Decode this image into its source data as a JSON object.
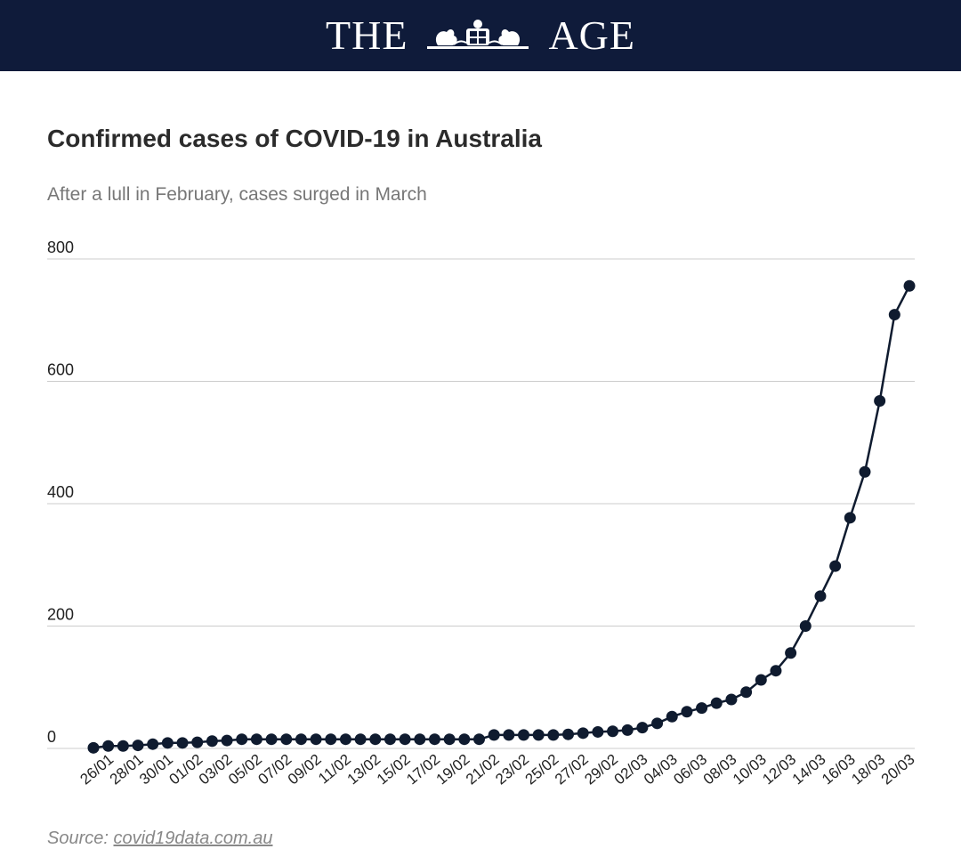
{
  "masthead": {
    "left_word": "THE",
    "right_word": "AGE"
  },
  "chart_data": {
    "type": "line",
    "title": "Confirmed cases of COVID-19 in Australia",
    "subtitle": "After a lull in February, cases surged in March",
    "xlabel": "",
    "ylabel": "",
    "ylim": [
      0,
      800
    ],
    "yticks": [
      0,
      200,
      400,
      600,
      800
    ],
    "grid": true,
    "x": [
      "25/01",
      "26/01",
      "27/01",
      "28/01",
      "29/01",
      "30/01",
      "31/01",
      "01/02",
      "02/02",
      "03/02",
      "04/02",
      "05/02",
      "06/02",
      "07/02",
      "08/02",
      "09/02",
      "10/02",
      "11/02",
      "12/02",
      "13/02",
      "14/02",
      "15/02",
      "16/02",
      "17/02",
      "18/02",
      "19/02",
      "20/02",
      "21/02",
      "22/02",
      "23/02",
      "24/02",
      "25/02",
      "26/02",
      "27/02",
      "28/02",
      "29/02",
      "01/03",
      "02/03",
      "03/03",
      "04/03",
      "05/03",
      "06/03",
      "07/03",
      "08/03",
      "09/03",
      "10/03",
      "11/03",
      "12/03",
      "13/03",
      "14/03",
      "15/03",
      "16/03",
      "17/03",
      "18/03",
      "19/03",
      "20/03"
    ],
    "xtick_labels": [
      "26/01",
      "28/01",
      "30/01",
      "01/02",
      "03/02",
      "05/02",
      "07/02",
      "09/02",
      "11/02",
      "13/02",
      "15/02",
      "17/02",
      "19/02",
      "21/02",
      "23/02",
      "25/02",
      "27/02",
      "29/02",
      "02/03",
      "04/03",
      "06/03",
      "08/03",
      "10/03",
      "12/03",
      "14/03",
      "16/03",
      "18/03",
      "20/03"
    ],
    "series": [
      {
        "values": [
          1,
          4,
          4,
          5,
          7,
          9,
          9,
          10,
          12,
          13,
          15,
          15,
          15,
          15,
          15,
          15,
          15,
          15,
          15,
          15,
          15,
          15,
          15,
          15,
          15,
          15,
          15,
          22,
          22,
          22,
          22,
          22,
          23,
          25,
          27,
          28,
          30,
          34,
          41,
          52,
          60,
          66,
          74,
          80,
          92,
          112,
          127,
          156,
          200,
          249,
          298,
          377,
          452,
          568,
          709,
          756
        ]
      }
    ],
    "line_color": "#0f1b2f"
  },
  "source": {
    "prefix": "Source: ",
    "link_text": "covid19data.com.au"
  }
}
